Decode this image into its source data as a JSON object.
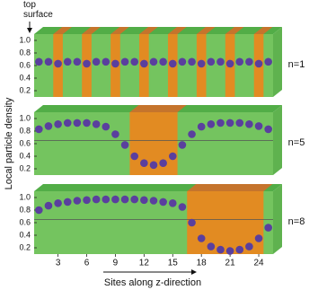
{
  "chart_data": [
    {
      "type": "scatter",
      "label": "n=1",
      "annotation": "top surface",
      "x": [
        1,
        2,
        3,
        4,
        5,
        6,
        7,
        8,
        9,
        10,
        11,
        12,
        13,
        14,
        15,
        16,
        17,
        18,
        19,
        20,
        21,
        22,
        23,
        24,
        25
      ],
      "series": [
        {
          "color": "#5a3f9e",
          "values": [
            0.66,
            0.66,
            0.63,
            0.66,
            0.66,
            0.63,
            0.66,
            0.66,
            0.63,
            0.66,
            0.66,
            0.63,
            0.66,
            0.66,
            0.63,
            0.66,
            0.66,
            0.63,
            0.66,
            0.66,
            0.63,
            0.66,
            0.66,
            0.63,
            0.66
          ]
        }
      ],
      "bands": [
        [
          2.5,
          3.5
        ],
        [
          5.5,
          6.5
        ],
        [
          8.5,
          9.5
        ],
        [
          11.5,
          12.5
        ],
        [
          14.5,
          15.5
        ],
        [
          17.5,
          18.5
        ],
        [
          20.5,
          21.5
        ],
        [
          23.5,
          24.5
        ]
      ],
      "xlim": [
        0.5,
        25.5
      ],
      "ylim": [
        0.1,
        1.1
      ],
      "yticks": [
        {
          "value": 1.0,
          "label": "1.0"
        },
        0.8,
        0.6,
        0.4,
        0.2
      ]
    },
    {
      "type": "scatter",
      "label": "n=5",
      "y_label": "Local particle density",
      "x": [
        1,
        2,
        3,
        4,
        5,
        6,
        7,
        8,
        9,
        10,
        11,
        12,
        13,
        14,
        15,
        16,
        17,
        18,
        19,
        20,
        21,
        22,
        23,
        24,
        25
      ],
      "series": [
        {
          "color": "#5a3f9e",
          "values": [
            0.83,
            0.88,
            0.91,
            0.93,
            0.93,
            0.93,
            0.91,
            0.87,
            0.75,
            0.58,
            0.4,
            0.29,
            0.26,
            0.29,
            0.4,
            0.58,
            0.75,
            0.87,
            0.91,
            0.93,
            0.93,
            0.93,
            0.91,
            0.88,
            0.83
          ]
        }
      ],
      "bands": [
        [
          10.5,
          15.5
        ]
      ],
      "reference_line": 0.65,
      "xlim": [
        0.5,
        25.5
      ],
      "ylim": [
        0.1,
        1.1
      ],
      "yticks": [
        {
          "value": 1.0,
          "label": "1.0"
        },
        0.8,
        0.6,
        0.4,
        0.2
      ]
    },
    {
      "type": "scatter",
      "label": "n=8",
      "x_label": "Sites along z-direction",
      "x": [
        1,
        2,
        3,
        4,
        5,
        6,
        7,
        8,
        9,
        10,
        11,
        12,
        13,
        14,
        15,
        16,
        17,
        18,
        19,
        20,
        21,
        22,
        23,
        24,
        25
      ],
      "series": [
        {
          "color": "#5a3f9e",
          "values": [
            0.8,
            0.87,
            0.91,
            0.93,
            0.95,
            0.96,
            0.97,
            0.97,
            0.97,
            0.97,
            0.97,
            0.96,
            0.95,
            0.93,
            0.91,
            0.85,
            0.6,
            0.35,
            0.22,
            0.17,
            0.15,
            0.17,
            0.22,
            0.35,
            0.52
          ]
        }
      ],
      "bands": [
        [
          16.5,
          24.5
        ]
      ],
      "reference_line": 0.65,
      "xlim": [
        0.5,
        25.5
      ],
      "ylim": [
        0.1,
        1.1
      ],
      "yticks": [
        {
          "value": 1.0,
          "label": "1.0"
        },
        0.8,
        0.6,
        0.4,
        0.2
      ],
      "xticks": [
        3,
        6,
        9,
        12,
        15,
        18,
        21,
        24
      ]
    }
  ]
}
